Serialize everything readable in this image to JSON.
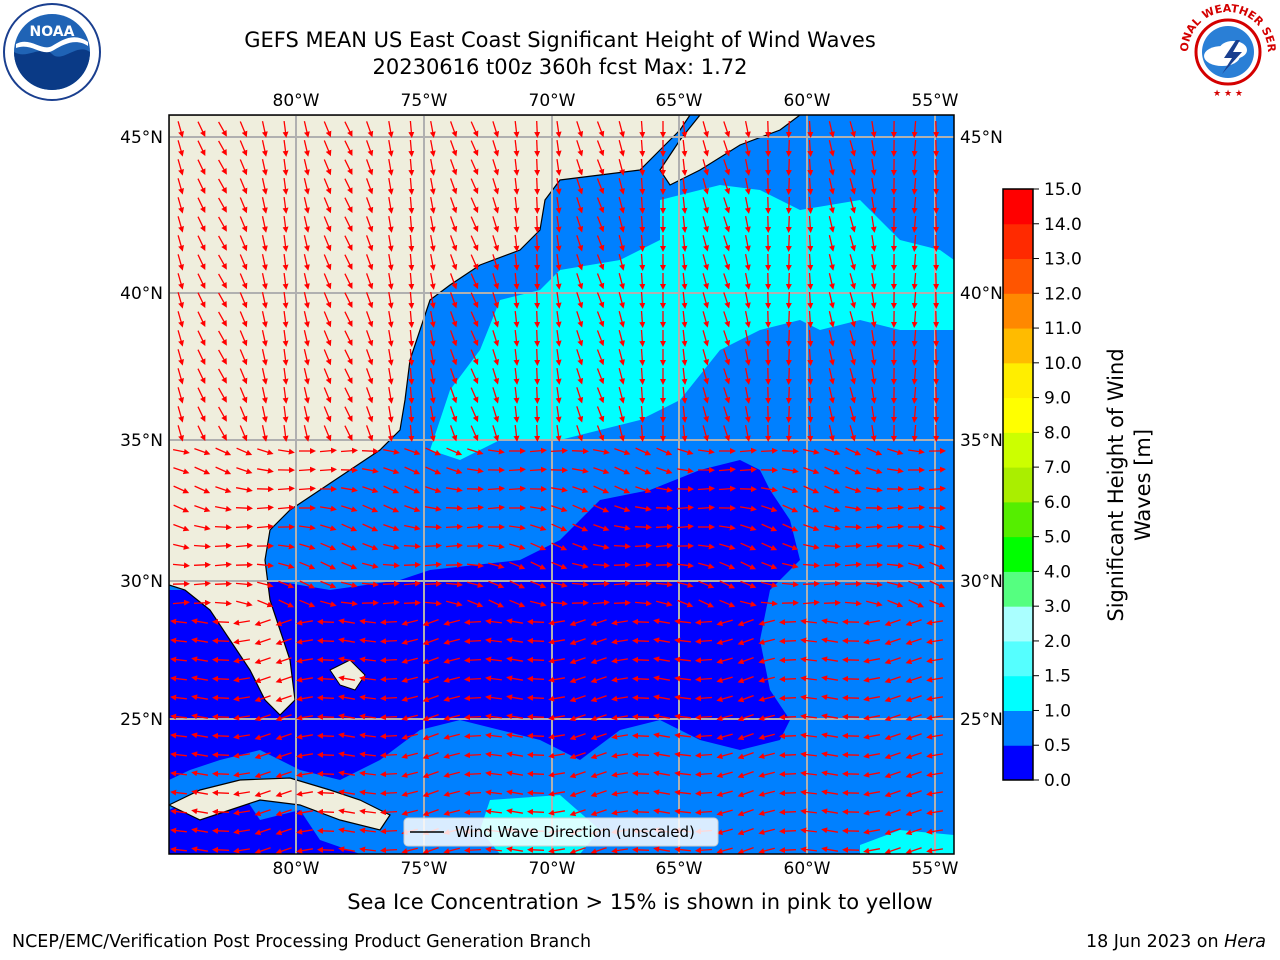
{
  "title": {
    "line1": "GEFS MEAN US East Coast Significant Height of Wind Waves",
    "line2": "20230616 t00z 360h fcst   Max: 1.72"
  },
  "axes": {
    "lon_labels": [
      "80°W",
      "75°W",
      "70°W",
      "65°W",
      "60°W",
      "55°W"
    ],
    "lat_labels": [
      "45°N",
      "40°N",
      "35°N",
      "30°N",
      "25°N"
    ]
  },
  "legend": {
    "label": "Wind Wave Direction (unscaled)"
  },
  "colorbar": {
    "label_line1": "Significant Height of Wind",
    "label_line2": "Waves [m]",
    "ticks": [
      "0.0",
      "0.5",
      "1.0",
      "1.5",
      "2.0",
      "3.0",
      "4.0",
      "5.0",
      "6.0",
      "7.0",
      "8.0",
      "9.0",
      "10.0",
      "11.0",
      "12.0",
      "13.0",
      "14.0",
      "15.0"
    ],
    "colors": [
      "#0000ff",
      "#0080ff",
      "#00ffff",
      "#55ffff",
      "#aaffff",
      "#55ff80",
      "#00ff00",
      "#55ee00",
      "#aaee00",
      "#ccff00",
      "#ffff00",
      "#ffee00",
      "#ffbb00",
      "#ff8800",
      "#ff5500",
      "#ff2a00",
      "#ff0000"
    ]
  },
  "map_colors": {
    "land": "#efeedd",
    "deep_blue": "#0000ff",
    "mid_blue": "#0080ff",
    "cyan": "#00ffff",
    "arrow": "#ff0000",
    "grid": "#b0b0b0"
  },
  "footer": {
    "note": "Sea Ice Concentration > 15% is shown in pink to yellow",
    "credit_left": "NCEP/EMC/Verification Post Processing Product Generation Branch",
    "credit_right_prefix": "18 Jun 2023 on ",
    "credit_right_host": "Hera"
  },
  "logos": {
    "noaa_text": "NOAA",
    "nws_text": "NATIONAL WEATHER SERVICE"
  }
}
